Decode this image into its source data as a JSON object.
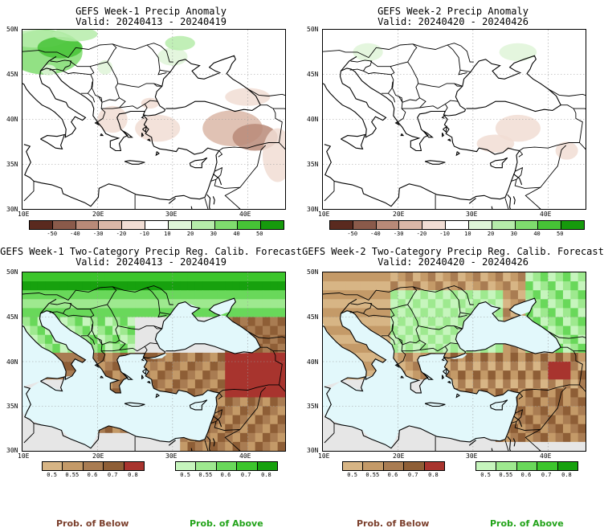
{
  "panels": [
    {
      "title": "GEFS Week-1 Precip Anomaly",
      "valid": "Valid: 20240413 - 20240419"
    },
    {
      "title": "GEFS Week-2 Precip Anomaly",
      "valid": "Valid: 20240420 - 20240426"
    },
    {
      "title": "GEFS Week-1 Two-Category Precip Reg. Calib. Forecast",
      "valid": "Valid: 20240413 - 20240419"
    },
    {
      "title": "GEFS Week-2 Two-Category Precip Reg. Calib. Forecast",
      "valid": "Valid: 20240420 - 20240426"
    }
  ],
  "lat_labels": [
    "50N",
    "45N",
    "40N",
    "35N",
    "30N"
  ],
  "lon_labels": [
    "10E",
    "20E",
    "30E",
    "40E"
  ],
  "anomaly_colorbar": {
    "labels": [
      "-50",
      "-40",
      "-30",
      "-20",
      "-10",
      "10",
      "20",
      "30",
      "40",
      "50"
    ],
    "colors": [
      "#5a2a1f",
      "#8a5a4a",
      "#b88a78",
      "#dbb7a7",
      "#f1ddd4",
      "#ffffff",
      "#dff5d8",
      "#b6ecaa",
      "#7fdc6e",
      "#46c336",
      "#169a0c"
    ]
  },
  "below_colorbar": {
    "labels": [
      "0.5",
      "0.55",
      "0.6",
      "0.7",
      "0.8"
    ],
    "colors": [
      "#d7b585",
      "#c49a68",
      "#a97c52",
      "#8e5e36",
      "#a8342e"
    ]
  },
  "above_colorbar": {
    "labels": [
      "0.5",
      "0.55",
      "0.6",
      "0.7",
      "0.8"
    ],
    "colors": [
      "#c6f5bd",
      "#9ee98f",
      "#69d85a",
      "#3cc52c",
      "#17a10e"
    ]
  },
  "legend": {
    "below": "Prob. of Below",
    "above": "Prob. of Above",
    "below_color": "#7b3f2c",
    "above_color": "#22a319"
  },
  "colors": {
    "sea": "#e2f8fb",
    "land_gray": "#e6e6e6"
  }
}
